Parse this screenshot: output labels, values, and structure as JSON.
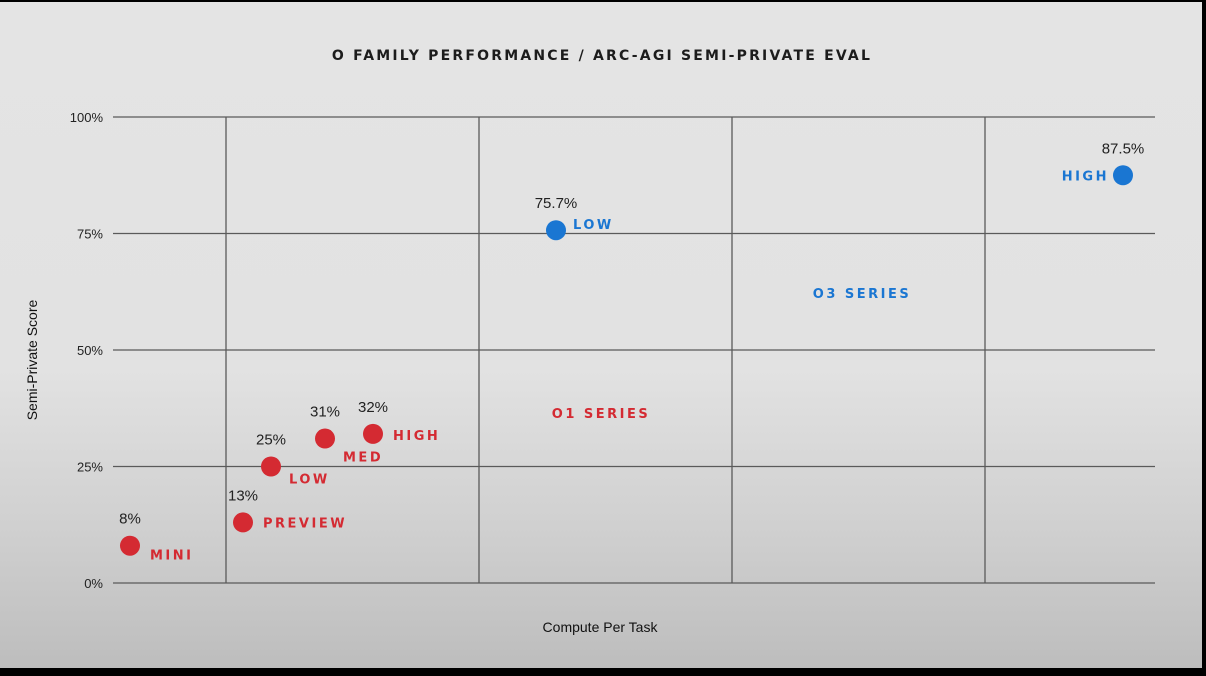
{
  "chart_data": {
    "type": "scatter",
    "title": "O FAMILY PERFORMANCE / ARC-AGI SEMI-PRIVATE EVAL",
    "xlabel": "Compute Per Task",
    "ylabel": "Semi-Private Score",
    "ylim": [
      0,
      100
    ],
    "yticks": [
      "0%",
      "25%",
      "50%",
      "75%",
      "100%"
    ],
    "grid": true,
    "series": [
      {
        "name": "O1 SERIES",
        "color": "#d42a32",
        "points": [
          {
            "label": "MINI",
            "value": 8,
            "value_label": "8%"
          },
          {
            "label": "PREVIEW",
            "value": 13,
            "value_label": "13%"
          },
          {
            "label": "LOW",
            "value": 25,
            "value_label": "25%"
          },
          {
            "label": "MED",
            "value": 31,
            "value_label": "31%"
          },
          {
            "label": "HIGH",
            "value": 32,
            "value_label": "32%"
          }
        ]
      },
      {
        "name": "O3 SERIES",
        "color": "#1a76d2",
        "points": [
          {
            "label": "LOW",
            "value": 75.7,
            "value_label": "75.7%"
          },
          {
            "label": "HIGH",
            "value": 87.5,
            "value_label": "87.5%"
          }
        ]
      }
    ]
  }
}
